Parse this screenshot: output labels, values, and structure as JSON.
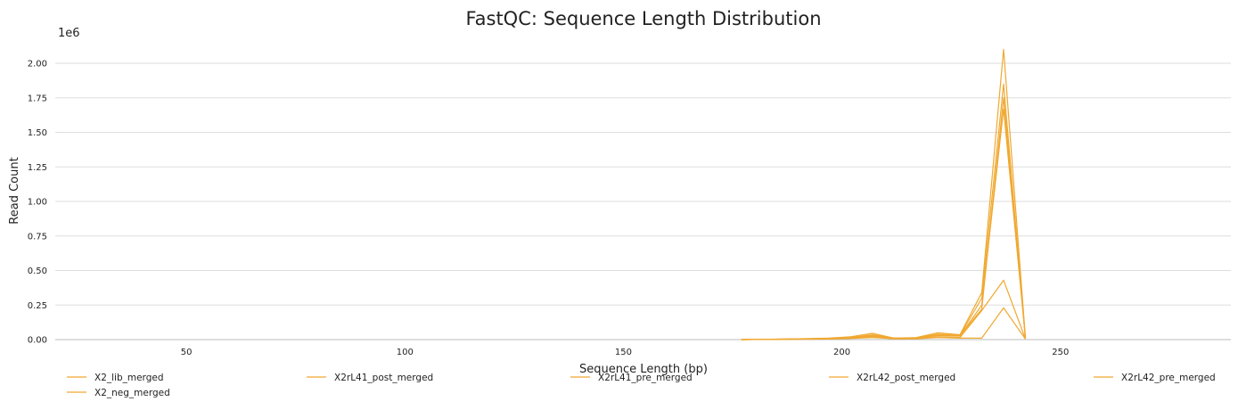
{
  "chart_data": {
    "type": "line",
    "title": "FastQC: Sequence Length Distribution",
    "xlabel": "Sequence Length (bp)",
    "ylabel": "Read Count",
    "y_offset_label": "1e6",
    "xlim": [
      20,
      289
    ],
    "ylim": [
      0,
      2.2
    ],
    "x_ticks": [
      50,
      100,
      150,
      200,
      250
    ],
    "y_ticks": [
      "0.00",
      "0.25",
      "0.50",
      "0.75",
      "1.00",
      "1.25",
      "1.50",
      "1.75",
      "2.00"
    ],
    "grid": "horizontal",
    "legend_position": "bottom",
    "series_color": "#f0a830",
    "x": [
      177,
      187,
      197,
      202,
      207,
      212,
      217,
      222,
      227,
      232,
      237,
      242
    ],
    "series": [
      {
        "name": "X2_lib_merged",
        "values": [
          0.0,
          0.004,
          0.01,
          0.02,
          0.045,
          0.01,
          0.015,
          0.05,
          0.035,
          0.34,
          2.1,
          0.01
        ]
      },
      {
        "name": "X2_neg_merged",
        "values": [
          0.0,
          0.002,
          0.004,
          0.008,
          0.015,
          0.005,
          0.005,
          0.015,
          0.01,
          0.01,
          0.23,
          0.004
        ]
      },
      {
        "name": "X2rL41_post_merged",
        "values": [
          0.0,
          0.003,
          0.008,
          0.015,
          0.035,
          0.01,
          0.012,
          0.04,
          0.03,
          0.3,
          1.85,
          0.01
        ]
      },
      {
        "name": "X2rL41_pre_merged",
        "values": [
          0.0,
          0.003,
          0.007,
          0.012,
          0.025,
          0.008,
          0.01,
          0.03,
          0.025,
          0.25,
          1.67,
          0.01
        ]
      },
      {
        "name": "X2rL42_post_merged",
        "values": [
          0.0,
          0.002,
          0.005,
          0.01,
          0.02,
          0.006,
          0.008,
          0.02,
          0.015,
          0.21,
          0.43,
          0.005
        ]
      },
      {
        "name": "X2rL42_pre_merged",
        "values": [
          0.0,
          0.003,
          0.007,
          0.013,
          0.03,
          0.009,
          0.011,
          0.035,
          0.028,
          0.22,
          1.75,
          0.01
        ]
      }
    ]
  },
  "legend_order": [
    "X2_lib_merged",
    "X2rL41_post_merged",
    "X2rL41_pre_merged",
    "X2rL42_post_merged",
    "X2rL42_pre_merged",
    "X2_neg_merged"
  ]
}
